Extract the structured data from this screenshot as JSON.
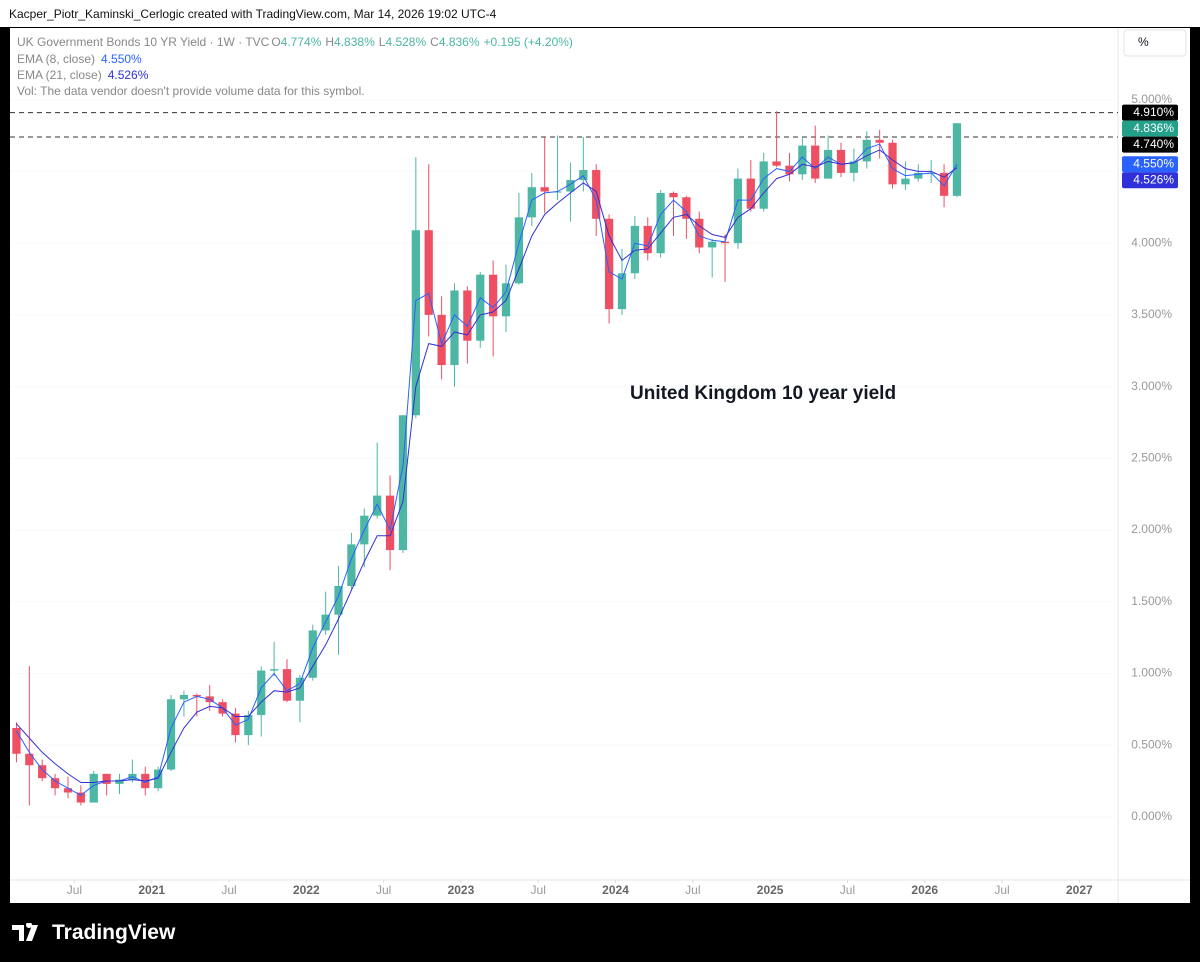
{
  "header": {
    "attribution": "Kacper_Piotr_Kaminski_Cerlogic created with TradingView.com, Mar 14, 2026 19:02 UTC-4"
  },
  "footer": {
    "brand": "TradingView"
  },
  "toolbar": {
    "scale_button": "%"
  },
  "chart_data": {
    "type": "candlestick",
    "legend": {
      "symbol": "UK Government Bonds 10 YR Yield · 1W · TVC",
      "ohlc": [
        {
          "key": "O",
          "label": "4.774%"
        },
        {
          "key": "H",
          "label": "4.838%"
        },
        {
          "key": "L",
          "label": "4.528%"
        },
        {
          "key": "C",
          "label": "4.836%"
        }
      ],
      "change": "+0.195 (+4.20%)",
      "volume_note": "Vol: The data vendor doesn't provide volume data for this symbol."
    },
    "annotation": "United Kingdom 10 year yield",
    "up_color": "#4db6a4",
    "down_color": "#ef4f63",
    "x": [
      "2020-02",
      "2020-03",
      "2020-04",
      "2020-05",
      "2020-06",
      "2020-07",
      "2020-08",
      "2020-09",
      "2020-10",
      "2020-11",
      "2020-12",
      "2021-01",
      "2021-02",
      "2021-03",
      "2021-04",
      "2021-05",
      "2021-06",
      "2021-07",
      "2021-08",
      "2021-09",
      "2021-10",
      "2021-11",
      "2021-12",
      "2022-01",
      "2022-02",
      "2022-03",
      "2022-04",
      "2022-05",
      "2022-06",
      "2022-07",
      "2022-08",
      "2022-09",
      "2022-10",
      "2022-11",
      "2022-12",
      "2023-01",
      "2023-02",
      "2023-03",
      "2023-04",
      "2023-05",
      "2023-06",
      "2023-07",
      "2023-08",
      "2023-09",
      "2023-10",
      "2023-11",
      "2023-12",
      "2024-01",
      "2024-02",
      "2024-03",
      "2024-04",
      "2024-05",
      "2024-06",
      "2024-07",
      "2024-08",
      "2024-09",
      "2024-10",
      "2024-11",
      "2024-12",
      "2025-01",
      "2025-02",
      "2025-03",
      "2025-04",
      "2025-05",
      "2025-06",
      "2025-07",
      "2025-08",
      "2025-09",
      "2025-10",
      "2025-11",
      "2025-12",
      "2026-01",
      "2026-02",
      "2026-03"
    ],
    "open": [
      0.62,
      0.44,
      0.36,
      0.27,
      0.2,
      0.17,
      0.1,
      0.3,
      0.23,
      0.26,
      0.3,
      0.2,
      0.33,
      0.82,
      0.85,
      0.84,
      0.8,
      0.72,
      0.57,
      0.71,
      1.02,
      1.03,
      0.81,
      0.97,
      1.3,
      1.41,
      1.61,
      1.9,
      2.1,
      2.24,
      1.86,
      2.8,
      4.09,
      3.5,
      3.15,
      3.67,
      3.32,
      3.78,
      3.49,
      3.72,
      4.18,
      4.39,
      4.36,
      4.36,
      4.44,
      4.51,
      4.17,
      3.54,
      3.79,
      4.12,
      3.93,
      4.35,
      4.32,
      4.17,
      3.97,
      4.01,
      4.0,
      4.45,
      4.24,
      4.57,
      4.54,
      4.48,
      4.68,
      4.45,
      4.65,
      4.49,
      4.57,
      4.72,
      4.7,
      4.41,
      4.45,
      4.49,
      4.49,
      4.33
    ],
    "high": [
      0.66,
      1.05,
      0.4,
      0.3,
      0.28,
      0.22,
      0.32,
      0.3,
      0.3,
      0.4,
      0.35,
      0.35,
      0.85,
      0.88,
      0.86,
      0.92,
      0.82,
      0.76,
      0.74,
      1.05,
      1.22,
      1.1,
      0.99,
      1.34,
      1.57,
      1.75,
      1.98,
      2.15,
      2.61,
      2.38,
      2.8,
      4.6,
      4.55,
      3.63,
      3.72,
      3.7,
      3.8,
      3.88,
      3.85,
      4.35,
      4.49,
      4.74,
      4.75,
      4.56,
      4.74,
      4.55,
      4.2,
      3.96,
      4.19,
      4.18,
      4.37,
      4.36,
      4.33,
      4.22,
      4.03,
      4.06,
      4.52,
      4.58,
      4.63,
      4.92,
      4.63,
      4.74,
      4.82,
      4.75,
      4.7,
      4.66,
      4.78,
      4.79,
      4.72,
      4.57,
      4.55,
      4.58,
      4.55,
      4.838
    ],
    "low": [
      0.38,
      0.08,
      0.25,
      0.15,
      0.13,
      0.08,
      0.1,
      0.15,
      0.16,
      0.24,
      0.15,
      0.18,
      0.32,
      0.7,
      0.7,
      0.74,
      0.7,
      0.52,
      0.5,
      0.56,
      0.98,
      0.8,
      0.66,
      0.95,
      1.27,
      1.13,
      1.58,
      1.74,
      2.08,
      1.72,
      1.84,
      2.78,
      3.35,
      3.05,
      3.0,
      3.16,
      3.27,
      3.21,
      3.38,
      3.71,
      4.12,
      4.21,
      4.3,
      4.15,
      4.36,
      4.05,
      3.44,
      3.5,
      3.75,
      3.88,
      3.9,
      4.05,
      4.03,
      3.93,
      3.76,
      3.73,
      3.96,
      4.22,
      4.22,
      4.53,
      4.43,
      4.44,
      4.42,
      4.45,
      4.46,
      4.43,
      4.52,
      4.59,
      4.38,
      4.37,
      4.43,
      4.42,
      4.25,
      4.32
    ],
    "close": [
      0.44,
      0.36,
      0.27,
      0.2,
      0.17,
      0.1,
      0.3,
      0.23,
      0.26,
      0.3,
      0.2,
      0.33,
      0.82,
      0.85,
      0.84,
      0.8,
      0.72,
      0.57,
      0.71,
      1.02,
      1.03,
      0.81,
      0.97,
      1.3,
      1.41,
      1.61,
      1.9,
      2.1,
      2.24,
      1.86,
      2.8,
      4.09,
      3.5,
      3.15,
      3.67,
      3.32,
      3.78,
      3.49,
      3.72,
      4.18,
      4.39,
      4.36,
      4.36,
      4.44,
      4.51,
      4.17,
      3.54,
      3.79,
      4.12,
      3.93,
      4.35,
      4.32,
      4.17,
      3.97,
      4.01,
      4.0,
      4.45,
      4.24,
      4.57,
      4.54,
      4.48,
      4.68,
      4.45,
      4.65,
      4.49,
      4.57,
      4.72,
      4.7,
      4.41,
      4.45,
      4.49,
      4.49,
      4.33,
      4.836
    ],
    "series": [
      {
        "name": "EMA (8, close)",
        "color": "#2962ff",
        "legend_value": "4.550%",
        "values": [
          0.6,
          0.45,
          0.33,
          0.25,
          0.2,
          0.15,
          0.22,
          0.25,
          0.25,
          0.28,
          0.24,
          0.28,
          0.62,
          0.8,
          0.84,
          0.82,
          0.76,
          0.64,
          0.68,
          0.9,
          1.0,
          0.88,
          0.93,
          1.18,
          1.36,
          1.54,
          1.8,
          2.0,
          2.18,
          2.0,
          2.45,
          3.6,
          3.65,
          3.3,
          3.5,
          3.42,
          3.62,
          3.55,
          3.66,
          4.0,
          4.3,
          4.35,
          4.36,
          4.41,
          4.47,
          4.3,
          3.8,
          3.75,
          4.0,
          3.98,
          4.2,
          4.3,
          4.22,
          4.05,
          4.02,
          4.01,
          4.3,
          4.3,
          4.45,
          4.52,
          4.5,
          4.6,
          4.52,
          4.6,
          4.55,
          4.56,
          4.66,
          4.69,
          4.52,
          4.47,
          4.48,
          4.49,
          4.4,
          4.55
        ]
      },
      {
        "name": "EMA (21, close)",
        "color": "#3030d8",
        "legend_value": "4.526%",
        "values": [
          0.65,
          0.55,
          0.45,
          0.37,
          0.3,
          0.24,
          0.24,
          0.25,
          0.25,
          0.26,
          0.25,
          0.27,
          0.45,
          0.62,
          0.73,
          0.77,
          0.76,
          0.7,
          0.7,
          0.8,
          0.88,
          0.87,
          0.9,
          1.05,
          1.2,
          1.38,
          1.58,
          1.78,
          1.96,
          1.96,
          2.2,
          3.0,
          3.3,
          3.28,
          3.38,
          3.36,
          3.5,
          3.52,
          3.6,
          3.82,
          4.05,
          4.2,
          4.28,
          4.35,
          4.42,
          4.36,
          4.05,
          3.88,
          3.95,
          3.96,
          4.07,
          4.18,
          4.2,
          4.12,
          4.06,
          4.04,
          4.18,
          4.24,
          4.35,
          4.45,
          4.48,
          4.55,
          4.53,
          4.57,
          4.55,
          4.56,
          4.61,
          4.65,
          4.58,
          4.52,
          4.5,
          4.5,
          4.46,
          4.526
        ]
      }
    ],
    "horizontal_lines": [
      {
        "value": 4.91,
        "label": "4.910%"
      },
      {
        "value": 4.74,
        "label": "4.740%"
      }
    ],
    "xlim": [
      "2020-02",
      "2027-04"
    ],
    "xticks": [
      {
        "value": "2020-07",
        "label": "Jul"
      },
      {
        "value": "2021-01",
        "label": "2021"
      },
      {
        "value": "2021-07",
        "label": "Jul"
      },
      {
        "value": "2022-01",
        "label": "2022"
      },
      {
        "value": "2022-07",
        "label": "Jul"
      },
      {
        "value": "2023-01",
        "label": "2023"
      },
      {
        "value": "2023-07",
        "label": "Jul"
      },
      {
        "value": "2024-01",
        "label": "2024"
      },
      {
        "value": "2024-07",
        "label": "Jul"
      },
      {
        "value": "2025-01",
        "label": "2025"
      },
      {
        "value": "2025-07",
        "label": "Jul"
      },
      {
        "value": "2026-01",
        "label": "2026"
      },
      {
        "value": "2026-07",
        "label": "Jul"
      },
      {
        "value": "2027-01",
        "label": "2027"
      }
    ],
    "ylim": [
      -0.44,
      5.5
    ],
    "yticks": [
      {
        "value": 0,
        "label": "0.000%"
      },
      {
        "value": 0.5,
        "label": "0.500%"
      },
      {
        "value": 1,
        "label": "1.000%"
      },
      {
        "value": 1.5,
        "label": "1.500%"
      },
      {
        "value": 2,
        "label": "2.000%"
      },
      {
        "value": 2.5,
        "label": "2.500%"
      },
      {
        "value": 3,
        "label": "3.000%"
      },
      {
        "value": 3.5,
        "label": "3.500%"
      },
      {
        "value": 4,
        "label": "4.000%"
      },
      {
        "value": 4.5,
        "label": "4.500%"
      },
      {
        "value": 5,
        "label": "5.000%"
      }
    ]
  }
}
